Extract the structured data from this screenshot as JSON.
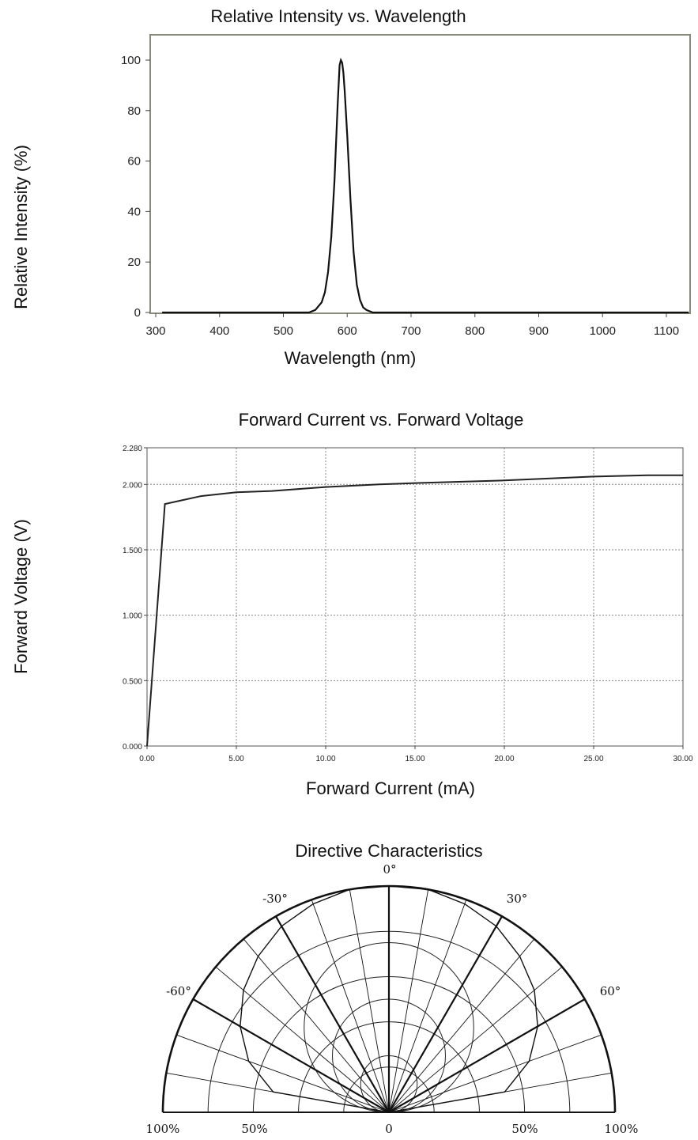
{
  "chart_data": [
    {
      "type": "line",
      "title": "Relative Intensity vs. Wavelength",
      "xlabel": "Wavelength (nm)",
      "ylabel": "Relative Intensity (%)",
      "xlim": [
        300,
        1150
      ],
      "ylim": [
        0,
        110
      ],
      "x_ticks": [
        "300",
        "400",
        "500",
        "600",
        "700",
        "800",
        "900",
        "1000",
        "1100"
      ],
      "y_ticks": [
        "0",
        "20",
        "40",
        "60",
        "80",
        "100"
      ],
      "grid": false,
      "series": [
        {
          "x": [
            310,
            540,
            550,
            560,
            565,
            570,
            575,
            580,
            585,
            588,
            590,
            592,
            594,
            596,
            600,
            605,
            610,
            615,
            620,
            625,
            630,
            640,
            1135
          ],
          "y": [
            0,
            0,
            1,
            4,
            8,
            16,
            30,
            52,
            82,
            98,
            100,
            99,
            95,
            88,
            70,
            45,
            24,
            11,
            5,
            2,
            1,
            0,
            0
          ]
        }
      ]
    },
    {
      "type": "line",
      "title": "Forward Current vs. Forward Voltage",
      "xlabel": "Forward Current (mA)",
      "ylabel": "Forward Voltage (V)",
      "xlim": [
        0,
        30
      ],
      "ylim": [
        0,
        2.28
      ],
      "x_ticks": [
        "0.00",
        "5.00",
        "10.00",
        "15.00",
        "20.00",
        "25.00",
        "30.00"
      ],
      "y_ticks": [
        "0.000",
        "0.500",
        "1.000",
        "1.500",
        "2.000",
        "2.280"
      ],
      "grid": true,
      "series": [
        {
          "x": [
            0,
            1.0,
            2.0,
            3.0,
            5.0,
            7.0,
            10.0,
            13.0,
            15.0,
            20.0,
            25.0,
            28.0,
            30.0
          ],
          "y": [
            0.0,
            1.85,
            1.88,
            1.91,
            1.94,
            1.95,
            1.98,
            2.0,
            2.01,
            2.03,
            2.06,
            2.07,
            2.07
          ]
        }
      ]
    },
    {
      "type": "polar",
      "title": "Directive Characteristics",
      "angle_labels": [
        "0°",
        "30°",
        "-30°",
        "60°",
        "-60°"
      ],
      "radial_labels": [
        "100%",
        "50%",
        "0",
        "50%",
        "100%"
      ],
      "angle_range": [
        -90,
        90
      ],
      "series": [
        {
          "angle_deg": [
            -90,
            -80,
            -70,
            -60,
            -50,
            -40,
            -30,
            -20,
            -10,
            0,
            10,
            20,
            30,
            40,
            50,
            60,
            70,
            80,
            90
          ],
          "relative_intensity": [
            0,
            0.52,
            0.66,
            0.76,
            0.84,
            0.9,
            0.95,
            0.98,
            1.0,
            1.0,
            1.0,
            0.98,
            0.95,
            0.9,
            0.84,
            0.76,
            0.66,
            0.52,
            0
          ]
        }
      ]
    }
  ]
}
